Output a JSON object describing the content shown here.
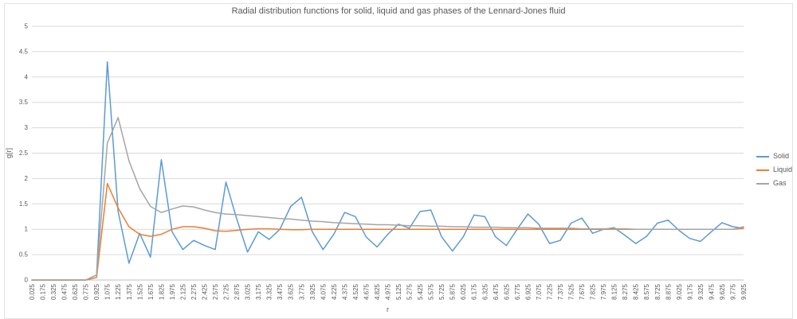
{
  "chart_data": {
    "type": "line",
    "title": "Radial distribution functions for solid, liquid and gas phases of the Lennard-Jones fluid",
    "xlabel": "r",
    "ylabel": "g[r]",
    "ylim": [
      0,
      5
    ],
    "ytick_step": 0.5,
    "grid": true,
    "legend_position": "right",
    "text_color": "#595959",
    "gridline_color": "#d9d9d9",
    "axis_color": "#bfbfbf",
    "x": [
      0.025,
      0.175,
      0.325,
      0.475,
      0.625,
      0.775,
      0.925,
      1.075,
      1.225,
      1.375,
      1.525,
      1.675,
      1.825,
      1.975,
      2.125,
      2.275,
      2.425,
      2.575,
      2.725,
      2.875,
      3.025,
      3.175,
      3.325,
      3.475,
      3.625,
      3.775,
      3.925,
      4.075,
      4.225,
      4.375,
      4.525,
      4.675,
      4.825,
      4.975,
      5.125,
      5.275,
      5.425,
      5.575,
      5.725,
      5.875,
      6.025,
      6.175,
      6.325,
      6.475,
      6.625,
      6.775,
      6.925,
      7.075,
      7.225,
      7.375,
      7.525,
      7.675,
      7.825,
      7.975,
      8.125,
      8.275,
      8.425,
      8.575,
      8.725,
      8.875,
      9.025,
      9.175,
      9.325,
      9.475,
      9.625,
      9.775,
      9.925
    ],
    "series": [
      {
        "name": "Solid",
        "color": "#5B9BD5",
        "values": [
          0,
          0,
          0,
          0,
          0,
          0,
          0.1,
          4.3,
          1.35,
          0.33,
          0.92,
          0.45,
          2.37,
          0.95,
          0.6,
          0.78,
          0.68,
          0.6,
          1.93,
          1.2,
          0.55,
          0.95,
          0.8,
          1.0,
          1.45,
          1.63,
          0.95,
          0.6,
          0.9,
          1.33,
          1.25,
          0.85,
          0.65,
          0.9,
          1.1,
          1.02,
          1.35,
          1.38,
          0.85,
          0.57,
          0.85,
          1.28,
          1.25,
          0.85,
          0.68,
          1.0,
          1.3,
          1.1,
          0.72,
          0.78,
          1.12,
          1.22,
          0.92,
          1.0,
          1.03,
          0.88,
          0.72,
          0.86,
          1.12,
          1.18,
          0.98,
          0.82,
          0.76,
          0.95,
          1.13,
          1.05,
          1.02
        ]
      },
      {
        "name": "Liquid",
        "color": "#ED7D31",
        "values": [
          0,
          0,
          0,
          0,
          0,
          0,
          0.05,
          1.9,
          1.42,
          1.05,
          0.9,
          0.86,
          0.9,
          1.0,
          1.05,
          1.05,
          1.02,
          0.97,
          0.96,
          0.98,
          1.0,
          1.01,
          1.01,
          1.0,
          0.99,
          0.99,
          1.0,
          1.0,
          1.0,
          1.0,
          1.0,
          1.0,
          1.0,
          1.0,
          1.0,
          1.0,
          1.0,
          1.0,
          1.0,
          1.0,
          1.0,
          1.0,
          1.0,
          1.0,
          1.0,
          1.0,
          1.0,
          1.0,
          1.0,
          1.0,
          1.0,
          1.0,
          1.0,
          1.0,
          1.0,
          1.0,
          1.0,
          1.0,
          1.0,
          1.0,
          1.0,
          1.0,
          1.0,
          1.0,
          1.0,
          1.0,
          1.02
        ]
      },
      {
        "name": "Gas",
        "color": "#A5A5A5",
        "values": [
          0,
          0,
          0,
          0,
          0,
          0,
          0.1,
          2.7,
          3.2,
          2.35,
          1.8,
          1.45,
          1.33,
          1.4,
          1.46,
          1.44,
          1.38,
          1.33,
          1.3,
          1.29,
          1.27,
          1.25,
          1.23,
          1.21,
          1.2,
          1.18,
          1.16,
          1.15,
          1.13,
          1.12,
          1.11,
          1.1,
          1.09,
          1.09,
          1.08,
          1.07,
          1.07,
          1.06,
          1.06,
          1.05,
          1.05,
          1.04,
          1.04,
          1.04,
          1.03,
          1.03,
          1.03,
          1.02,
          1.02,
          1.02,
          1.02,
          1.01,
          1.01,
          1.01,
          1.01,
          1.01,
          1.0,
          1.0,
          1.0,
          1.0,
          1.0,
          1.0,
          1.0,
          1.0,
          1.0,
          1.0,
          1.05
        ]
      }
    ]
  }
}
